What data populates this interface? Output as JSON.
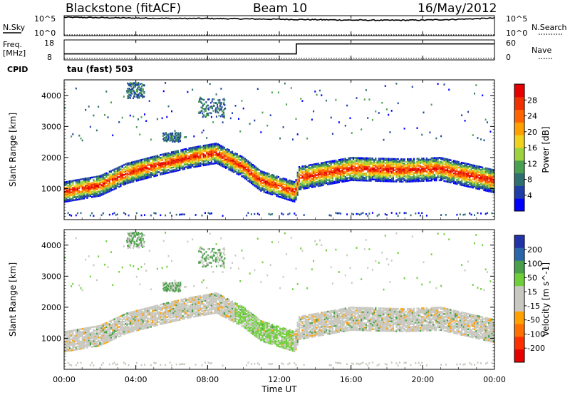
{
  "header": {
    "site": "Blackstone (fitACF)",
    "beam": "Beam 10",
    "date": "16/May/2012"
  },
  "noise_panel": {
    "left_label": "N.Sky",
    "left_ticks": [
      "10^5",
      "10^0"
    ],
    "right_label": "N.Search",
    "right_ticks": [
      "10^5",
      "10^0"
    ]
  },
  "freq_panel": {
    "label_top": "Freq.",
    "label_unit": "[MHz]",
    "left_ticks": [
      "18",
      "8"
    ],
    "right_label": "Nave",
    "right_ticks": [
      "60",
      "0"
    ],
    "cpid_label": "CPID",
    "cpid_value": "tau (fast) 503"
  },
  "colors": {
    "power": [
      "#0000ff",
      "#1f3fa8",
      "#2f6f6f",
      "#4aa050",
      "#9cd23c",
      "#f0d21e",
      "#ff9f00",
      "#ff6400",
      "#f03000",
      "#e60000"
    ],
    "velocity": [
      "#2233aa",
      "#2a66aa",
      "#4a9f4a",
      "#6fcf3a",
      "#c8c8c0",
      "#c8c8c0",
      "#ffa000",
      "#ff7000",
      "#ff3000",
      "#e60000"
    ]
  },
  "chart_data": [
    {
      "type": "line",
      "title": "N.Sky / N.Search",
      "x": [
        "00:00",
        "02:00",
        "04:00",
        "06:00",
        "08:00",
        "10:00",
        "12:00",
        "14:00",
        "16:00",
        "18:00",
        "20:00",
        "22:00",
        "24:00"
      ],
      "series": [
        {
          "name": "N.Sky",
          "values": [
            4.6,
            4.5,
            4.4,
            4.3,
            4.3,
            4.2,
            4.1,
            4.0,
            3.9,
            3.85,
            3.9,
            4.1,
            4.4
          ]
        },
        {
          "name": "N.Search",
          "values": [
            0.2,
            0.2,
            0.2,
            0.2,
            0.2,
            0.2,
            0.2,
            0.2,
            0.2,
            0.2,
            0.2,
            0.2,
            0.2
          ]
        }
      ],
      "ylim": [
        0,
        5
      ]
    },
    {
      "type": "line",
      "title": "Freq. / Nave",
      "x": [
        "00:00",
        "02:00",
        "04:00",
        "06:00",
        "08:00",
        "10:00",
        "12:00",
        "14:00",
        "16:00",
        "18:00",
        "20:00",
        "22:00",
        "24:00"
      ],
      "series": [
        {
          "name": "Freq.",
          "values": [
            11,
            11,
            11,
            11,
            11,
            11,
            11,
            16,
            16,
            16,
            16,
            16,
            16
          ]
        },
        {
          "name": "Nave",
          "values": [
            1,
            1,
            1,
            1,
            1,
            1,
            1,
            1,
            1,
            1,
            1,
            1,
            1
          ]
        }
      ],
      "ylim_freq": [
        8,
        18
      ],
      "ylim_nave": [
        0,
        60
      ]
    },
    {
      "type": "heatmap",
      "title": "Power",
      "ylabel": "Slant Range [km]",
      "y_ticks": [
        "1000",
        "2000",
        "3000",
        "4000"
      ],
      "xlabel": "Time UT",
      "x_ticks": [
        "00:00",
        "04:00",
        "08:00",
        "12:00",
        "16:00",
        "20:00",
        "00:00"
      ],
      "colorbar_label": "Power [dB]",
      "colorbar_ticks": [
        "4",
        "8",
        "12",
        "16",
        "20",
        "24",
        "28"
      ],
      "ylim": [
        0,
        4500
      ],
      "xlim_hours": [
        0,
        24
      ],
      "band_center_km": [
        {
          "t": 0.0,
          "r": 900
        },
        {
          "t": 2.0,
          "r": 1100
        },
        {
          "t": 3.5,
          "r": 1500
        },
        {
          "t": 5.5,
          "r": 1800
        },
        {
          "t": 7.0,
          "r": 2000
        },
        {
          "t": 8.5,
          "r": 2150
        },
        {
          "t": 10.0,
          "r": 1700
        },
        {
          "t": 11.0,
          "r": 1250
        },
        {
          "t": 12.9,
          "r": 900
        },
        {
          "t": 13.1,
          "r": 1350
        },
        {
          "t": 16.0,
          "r": 1650
        },
        {
          "t": 19.0,
          "r": 1600
        },
        {
          "t": 21.0,
          "r": 1650
        },
        {
          "t": 24.0,
          "r": 1250
        }
      ]
    },
    {
      "type": "heatmap",
      "title": "Velocity",
      "ylabel": "Slant Range [km]",
      "y_ticks": [
        "1000",
        "2000",
        "3000",
        "4000"
      ],
      "xlabel": "Time UT",
      "x_ticks": [
        "00:00",
        "04:00",
        "08:00",
        "12:00",
        "16:00",
        "20:00",
        "00:00"
      ],
      "colorbar_label": "Velocity [m s^-1]",
      "colorbar_ticks": [
        "200",
        "100",
        "50",
        "15",
        "-15",
        "-50",
        "-100",
        "-200"
      ],
      "ylim": [
        0,
        4500
      ],
      "xlim_hours": [
        0,
        24
      ]
    }
  ],
  "x_axis": {
    "label": "Time UT",
    "ticks": [
      "00:00",
      "04:00",
      "08:00",
      "12:00",
      "16:00",
      "20:00",
      "00:00"
    ]
  }
}
